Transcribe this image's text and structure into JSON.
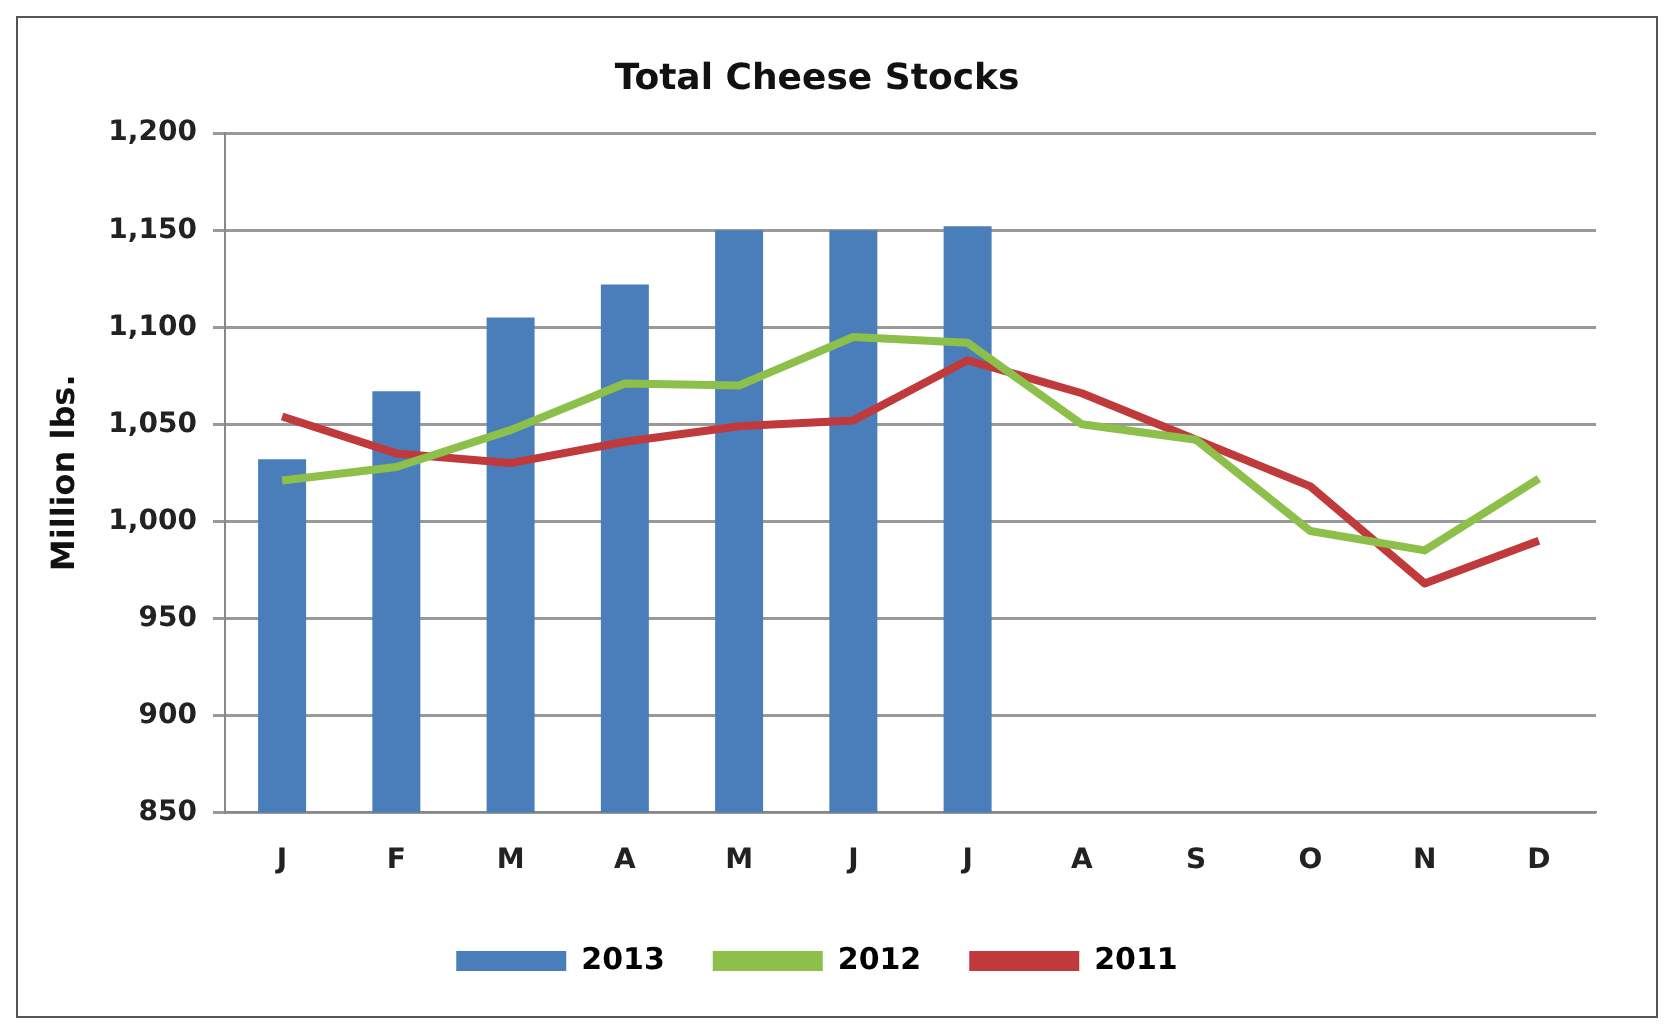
{
  "chart_data": {
    "type": "bar",
    "title": "Total Cheese Stocks",
    "ylabel": "Million lbs.",
    "categories": [
      "J",
      "F",
      "M",
      "A",
      "M",
      "J",
      "J",
      "A",
      "S",
      "O",
      "N",
      "D"
    ],
    "series": [
      {
        "name": "2013",
        "color": "#4a7ebb",
        "values": [
          1032,
          1067,
          1105,
          1122,
          1150,
          1150,
          1152,
          null,
          null,
          null,
          null,
          null
        ]
      },
      {
        "name": "2012",
        "type": "line",
        "color": "#8cc04a",
        "values": [
          1021,
          1028,
          1047,
          1071,
          1070,
          1095,
          1092,
          1050,
          1042,
          995,
          985,
          1022
        ]
      },
      {
        "name": "2011",
        "type": "line",
        "color": "#c0393b",
        "values": [
          1054,
          1035,
          1030,
          1041,
          1049,
          1052,
          1083,
          1066,
          1042,
          1018,
          968,
          990
        ]
      }
    ],
    "ylim": [
      850,
      1200
    ],
    "yticks": [
      {
        "value": 850,
        "label": "850"
      },
      {
        "value": 900,
        "label": "900"
      },
      {
        "value": 950,
        "label": "950"
      },
      {
        "value": 1000,
        "label": "1,000"
      },
      {
        "value": 1050,
        "label": "1,050"
      },
      {
        "value": 1100,
        "label": "1,100"
      },
      {
        "value": 1150,
        "label": "1,150"
      },
      {
        "value": 1200,
        "label": "1,200"
      }
    ],
    "grid": "y",
    "legend": "bottom",
    "marker": "none",
    "line_style": "solid"
  }
}
